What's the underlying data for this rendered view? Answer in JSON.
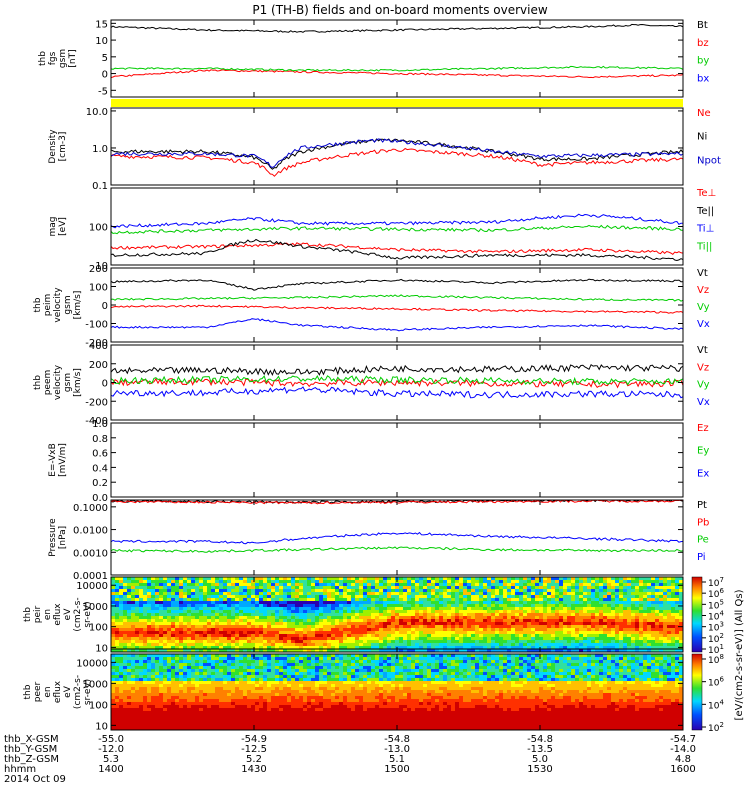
{
  "title": "P1 (TH-B) fields and on-board moments overview",
  "x_axis": {
    "rows": [
      {
        "label": "thb_X-GSM",
        "values": [
          "-55.0",
          "-54.9",
          "-54.8",
          "-54.8",
          "-54.7"
        ]
      },
      {
        "label": "thb_Y-GSM",
        "values": [
          "-12.0",
          "-12.5",
          "-13.0",
          "-13.5",
          "-14.0"
        ]
      },
      {
        "label": "thb_Z-GSM",
        "values": [
          "5.3",
          "5.2",
          "5.1",
          "5.0",
          "4.8"
        ]
      },
      {
        "label": "hhmm",
        "values": [
          "1400",
          "1430",
          "1500",
          "1530",
          "1600"
        ]
      }
    ],
    "date": "2014 Oct 09",
    "range_hhmm": [
      1400,
      1600
    ]
  },
  "colorbar": {
    "label": "[eV/(cm2-s-sr-eV)] (All Qs)",
    "upper_ticks": [
      "10^7",
      "10^6",
      "10^5",
      "10^4",
      "10^3",
      "10^2",
      "10^1"
    ],
    "lower_ticks": [
      "10^8",
      "10^6",
      "10^4",
      "10^2"
    ]
  },
  "chart_data": [
    {
      "type": "line",
      "panel": "fgs",
      "ylabel_lines": [
        "thb",
        "fgs",
        "gsm",
        "[nT]"
      ],
      "ylim": [
        -7,
        16
      ],
      "yticks": [
        "15",
        "10",
        "5",
        "0",
        "-5"
      ],
      "series": [
        {
          "name": "Bt",
          "color": "#000000",
          "x": [
            1400,
            1420,
            1440,
            1500,
            1520,
            1540,
            1550,
            1600
          ],
          "y": [
            14,
            13,
            12.5,
            13,
            13.5,
            14,
            14.5,
            14
          ]
        },
        {
          "name": "bz",
          "color": "#ff0000",
          "x": [
            1400,
            1420,
            1440,
            1500,
            1520,
            1540,
            1600
          ],
          "y": [
            -1,
            1,
            0.5,
            0,
            -0.5,
            -1,
            -0.5
          ]
        },
        {
          "name": "by",
          "color": "#00cc00",
          "x": [
            1400,
            1420,
            1440,
            1500,
            1520,
            1540,
            1600
          ],
          "y": [
            1.5,
            1.5,
            1,
            1,
            1.5,
            2,
            1.5
          ]
        },
        {
          "name": "bx",
          "color": "#0000ff",
          "x": [],
          "y": []
        }
      ]
    },
    {
      "type": "line",
      "panel": "density",
      "scale": "log",
      "ylabel_lines": [
        "Density",
        "[cm-3]"
      ],
      "ylim": [
        0.1,
        12
      ],
      "yticks": [
        "10.0",
        "1.0",
        "0.1"
      ],
      "series": [
        {
          "name": "Ne",
          "color": "#ff0000",
          "x": [
            1400,
            1420,
            1430,
            1434,
            1440,
            1500,
            1520,
            1530,
            1540,
            1600
          ],
          "y": [
            0.6,
            0.55,
            0.4,
            0.18,
            0.4,
            0.9,
            0.6,
            0.35,
            0.4,
            0.5
          ]
        },
        {
          "name": "Ni",
          "color": "#000000",
          "x": [
            1400,
            1420,
            1430,
            1434,
            1440,
            1455,
            1500,
            1520,
            1530,
            1540,
            1600
          ],
          "y": [
            0.8,
            0.8,
            0.55,
            0.25,
            0.8,
            1.6,
            1.6,
            0.8,
            0.5,
            0.5,
            0.8
          ]
        },
        {
          "name": "Npot",
          "color": "#0000cc",
          "x": [
            1400,
            1420,
            1430,
            1434,
            1440,
            1455,
            1500,
            1520,
            1530,
            1600
          ],
          "y": [
            0.7,
            0.7,
            0.6,
            0.3,
            1.0,
            1.6,
            1.5,
            0.8,
            0.6,
            0.7
          ]
        }
      ]
    },
    {
      "type": "line",
      "panel": "temperature",
      "scale": "log",
      "ylabel_lines": [
        "mag",
        "[eV]"
      ],
      "ylim": [
        10,
        1000
      ],
      "yticks": [
        "100",
        "10"
      ],
      "series": [
        {
          "name": "Te⊥",
          "color": "#ff0000",
          "x": [
            1400,
            1420,
            1440,
            1500,
            1520,
            1540,
            1600
          ],
          "y": [
            28,
            30,
            35,
            25,
            22,
            25,
            20
          ]
        },
        {
          "name": "Te||",
          "color": "#000000",
          "x": [
            1400,
            1420,
            1430,
            1440,
            1500,
            1520,
            1540,
            1600
          ],
          "y": [
            18,
            20,
            45,
            30,
            15,
            18,
            18,
            14
          ]
        },
        {
          "name": "Ti⊥",
          "color": "#0000ff",
          "x": [
            1400,
            1420,
            1430,
            1440,
            1500,
            1520,
            1540,
            1600
          ],
          "y": [
            100,
            120,
            160,
            120,
            120,
            130,
            200,
            120
          ]
        },
        {
          "name": "Ti||",
          "color": "#00cc00",
          "x": [
            1400,
            1420,
            1440,
            1500,
            1520,
            1540,
            1600
          ],
          "y": [
            70,
            80,
            90,
            85,
            80,
            100,
            85
          ]
        }
      ]
    },
    {
      "type": "line",
      "panel": "peim velocity",
      "ylabel_lines": [
        "thb",
        "peim",
        "velocity",
        "gsm",
        "[km/s]"
      ],
      "ylim": [
        -200,
        200
      ],
      "yticks": [
        "200",
        "100",
        "0",
        "-100",
        "-200"
      ],
      "series": [
        {
          "name": "Vt",
          "color": "#000000",
          "x": [
            1400,
            1420,
            1430,
            1440,
            1500,
            1520,
            1540,
            1600
          ],
          "y": [
            125,
            135,
            85,
            115,
            135,
            120,
            135,
            130
          ]
        },
        {
          "name": "Vz",
          "color": "#ff0000",
          "x": [
            1400,
            1420,
            1440,
            1500,
            1520,
            1540,
            1600
          ],
          "y": [
            -10,
            -5,
            -15,
            -20,
            -30,
            -35,
            -40
          ]
        },
        {
          "name": "Vy",
          "color": "#00cc00",
          "x": [
            1400,
            1420,
            1440,
            1500,
            1520,
            1540,
            1600
          ],
          "y": [
            30,
            35,
            40,
            50,
            40,
            30,
            25
          ]
        },
        {
          "name": "Vx",
          "color": "#0000ff",
          "x": [
            1400,
            1420,
            1430,
            1440,
            1500,
            1520,
            1540,
            1600
          ],
          "y": [
            -120,
            -120,
            -75,
            -110,
            -135,
            -120,
            -110,
            -130
          ]
        }
      ]
    },
    {
      "type": "line",
      "panel": "peem velocity",
      "ylabel_lines": [
        "thb",
        "peem",
        "velocity",
        "gsm",
        "[km/s]"
      ],
      "ylim": [
        -400,
        400
      ],
      "yticks": [
        "400",
        "200",
        "0",
        "-200",
        "-400"
      ],
      "series": [
        {
          "name": "Vt",
          "color": "#000000",
          "x": [
            1400,
            1420,
            1440,
            1500,
            1520,
            1540,
            1600
          ],
          "y": [
            120,
            130,
            110,
            150,
            140,
            160,
            150
          ]
        },
        {
          "name": "Vz",
          "color": "#ff0000",
          "x": [
            1400,
            1420,
            1440,
            1500,
            1520,
            1540,
            1600
          ],
          "y": [
            0,
            10,
            -10,
            0,
            -10,
            -20,
            -10
          ]
        },
        {
          "name": "Vy",
          "color": "#00cc00",
          "x": [
            1400,
            1420,
            1440,
            1500,
            1520,
            1540,
            1600
          ],
          "y": [
            20,
            30,
            40,
            30,
            20,
            10,
            10
          ]
        },
        {
          "name": "Vx",
          "color": "#0000ff",
          "x": [
            1400,
            1420,
            1440,
            1500,
            1520,
            1540,
            1600
          ],
          "y": [
            -110,
            -110,
            -70,
            -120,
            -130,
            -120,
            -130
          ]
        }
      ]
    },
    {
      "type": "line",
      "panel": "efield",
      "ylabel_lines": [
        "E=-VxB",
        "[mV/m]"
      ],
      "ylim": [
        0,
        1
      ],
      "yticks": [
        "1.0",
        "0.8",
        "0.6",
        "0.4",
        "0.2",
        "0.0"
      ],
      "series": [
        {
          "name": "Ez",
          "color": "#ff0000",
          "x": [],
          "y": []
        },
        {
          "name": "Ey",
          "color": "#00cc00",
          "x": [],
          "y": []
        },
        {
          "name": "Ex",
          "color": "#0000ff",
          "x": [],
          "y": []
        }
      ]
    },
    {
      "type": "line",
      "panel": "pressure",
      "scale": "log",
      "ylabel_lines": [
        "Pressure",
        "[nPa]"
      ],
      "ylim": [
        0.0001,
        0.2
      ],
      "yticks": [
        "0.1000",
        "0.0100",
        "0.0010",
        "0.0001"
      ],
      "series": [
        {
          "name": "Pt",
          "color": "#000000",
          "x": [
            1400,
            1420,
            1440,
            1500,
            1520,
            1540,
            1600
          ],
          "y": [
            0.18,
            0.17,
            0.16,
            0.17,
            0.18,
            0.19,
            0.19
          ]
        },
        {
          "name": "Pb",
          "color": "#ff0000",
          "x": [
            1400,
            1420,
            1440,
            1500,
            1520,
            1540,
            1600
          ],
          "y": [
            0.17,
            0.16,
            0.15,
            0.16,
            0.17,
            0.18,
            0.18
          ]
        },
        {
          "name": "Pe",
          "color": "#00cc00",
          "x": [
            1400,
            1420,
            1440,
            1500,
            1520,
            1540,
            1600
          ],
          "y": [
            0.0012,
            0.0011,
            0.0013,
            0.0016,
            0.0013,
            0.0012,
            0.0012
          ]
        },
        {
          "name": "Pi",
          "color": "#0000ff",
          "x": [
            1400,
            1420,
            1430,
            1440,
            1500,
            1520,
            1540,
            1600
          ],
          "y": [
            0.003,
            0.003,
            0.0025,
            0.004,
            0.007,
            0.005,
            0.004,
            0.003
          ]
        }
      ]
    },
    {
      "type": "heatmap",
      "panel": "peir en eflux",
      "scale": "log",
      "ylabel_lines": [
        "thb",
        "peir",
        "en",
        "eflux",
        "eV",
        "(cm2-s-",
        "sr-eV)"
      ],
      "ylim": [
        6,
        25000
      ],
      "yticks": [
        "10000",
        "1000",
        "100",
        "10"
      ],
      "peak_energy_eV": [
        {
          "x": 1400,
          "y": 60
        },
        {
          "x": 1430,
          "y": 60
        },
        {
          "x": 1440,
          "y": 30
        },
        {
          "x": 1500,
          "y": 180
        },
        {
          "x": 1540,
          "y": 200
        },
        {
          "x": 1600,
          "y": 100
        }
      ]
    },
    {
      "type": "heatmap",
      "panel": "peer en eflux",
      "scale": "log",
      "ylabel_lines": [
        "thb",
        "peer",
        "en",
        "eflux",
        "eV",
        "(cm2-s-",
        "sr-eV)"
      ],
      "ylim": [
        6,
        25000
      ],
      "yticks": [
        "10000",
        "1000",
        "100",
        "10"
      ]
    }
  ]
}
